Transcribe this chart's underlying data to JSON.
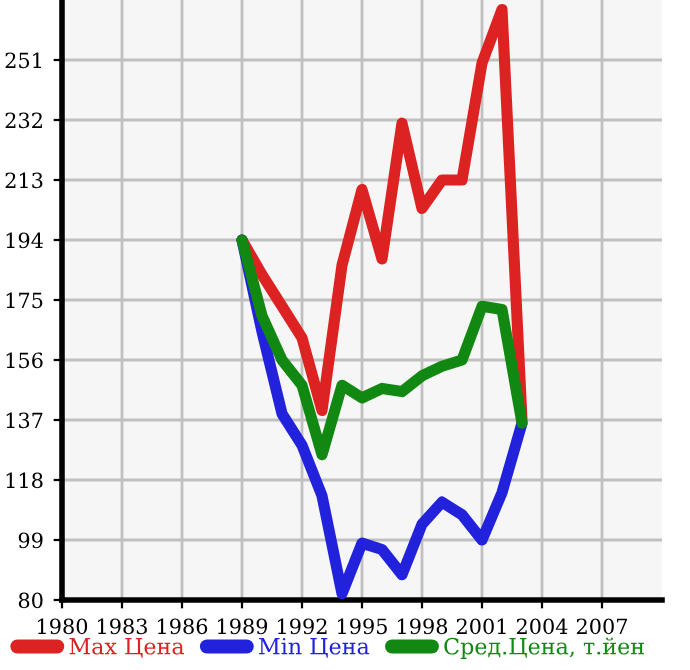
{
  "chart_data": {
    "type": "line",
    "x": [
      1989,
      1990,
      1991,
      1992,
      1993,
      1994,
      1995,
      1996,
      1997,
      1998,
      1999,
      2000,
      2001,
      2002,
      2003
    ],
    "series": [
      {
        "name": "Max Цена",
        "color": "#dd2222",
        "values": [
          194,
          183,
          173,
          163,
          140,
          186,
          210,
          188,
          231,
          204,
          213,
          213,
          250,
          267,
          137
        ]
      },
      {
        "name": "Min Цена",
        "color": "#2222dd",
        "values": [
          194,
          165,
          139,
          129,
          113,
          82,
          98,
          96,
          88,
          104,
          111,
          107,
          99,
          114,
          136
        ]
      },
      {
        "name": "Сред.Цена, т.йен",
        "color": "#118811",
        "values": [
          194,
          170,
          156,
          148,
          126,
          148,
          144,
          147,
          146,
          151,
          154,
          156,
          173,
          172,
          136
        ]
      }
    ],
    "xlim": [
      1980,
      2010
    ],
    "xticks": [
      1980,
      1983,
      1986,
      1989,
      1992,
      1995,
      1998,
      2001,
      2004,
      2007
    ],
    "ylim": [
      80,
      270
    ],
    "yticks": [
      80,
      99,
      118,
      137,
      156,
      175,
      194,
      213,
      232,
      251
    ],
    "grid": true,
    "legend": "bottom",
    "marker": "none",
    "line_style": "solid"
  }
}
